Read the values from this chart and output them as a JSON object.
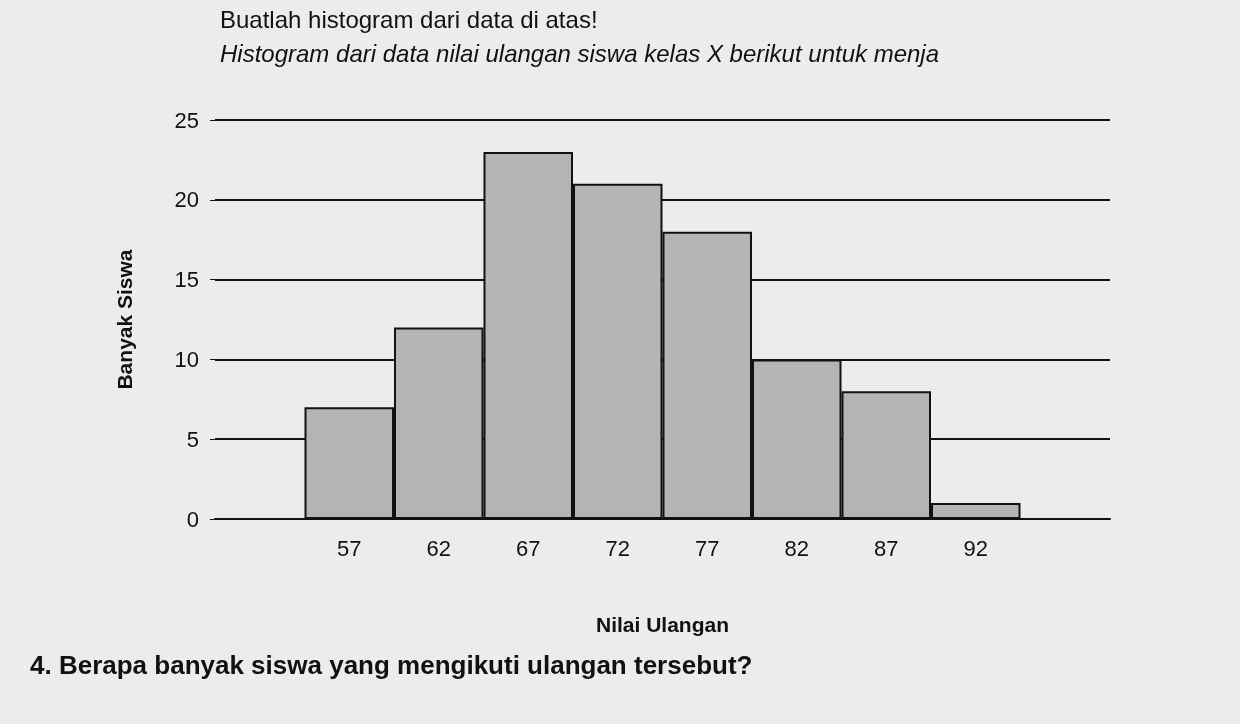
{
  "chart_data": {
    "type": "bar",
    "title": "Buatlah histogram dari data di atas!",
    "subtitle": "Histogram dari data nilai ulangan siswa kelas X berikut untuk menja",
    "xlabel": "Nilai Ulangan",
    "ylabel": "Banyak Siswa",
    "categories": [
      null,
      "57",
      "62",
      "67",
      "72",
      "77",
      "82",
      "87",
      "92",
      null
    ],
    "values": [
      null,
      7,
      12,
      23,
      21,
      18,
      10,
      8,
      1,
      null
    ],
    "color": "#b4b4b4",
    "ylim": [
      0,
      25
    ],
    "yticks": [
      0,
      5,
      10,
      15,
      20,
      25
    ],
    "grid": "y",
    "annotations": [
      "4. Berapa banyak siswa yang mengikuti ulangan tersebut?"
    ]
  }
}
